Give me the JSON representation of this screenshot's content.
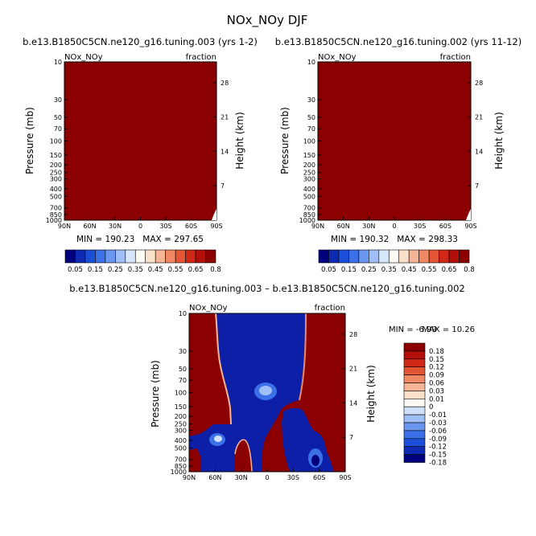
{
  "figure_title": "NOx_NOy DJF",
  "colors": {
    "abs_palette": [
      "#00007f",
      "#0d2bb2",
      "#1c4fd9",
      "#3b70e6",
      "#6a96f0",
      "#a0bff6",
      "#d6e6fb",
      "#fdfbf4",
      "#fbe0c9",
      "#f6b596",
      "#f08863",
      "#e35535",
      "#cf2816",
      "#b20f0a",
      "#8b0000"
    ],
    "diff_palette": [
      "#00007f",
      "#0d2bb2",
      "#1c4fd9",
      "#3b70e6",
      "#6a96f0",
      "#a0bff6",
      "#cfe0fa",
      "#fdfbf4",
      "#fbe0c9",
      "#f6b596",
      "#f08863",
      "#e35535",
      "#cf2816",
      "#b20f0a",
      "#8b0000"
    ]
  },
  "chart_data": [
    {
      "type": "heatmap",
      "title": "b.e13.B1850C5CN.ne120_g16.tuning.003 (yrs 1-2)",
      "left_label": "NOx_NOy",
      "right_label": "fraction",
      "xlabel": "",
      "ylabel": "Pressure (mb)",
      "ylabel_right": "Height (km)",
      "x_ticks": [
        "90N",
        "60N",
        "30N",
        "0",
        "30S",
        "60S",
        "90S"
      ],
      "y_ticks": [
        "10",
        "30",
        "50",
        "70",
        "100",
        "150",
        "200",
        "250",
        "300",
        "400",
        "500",
        "700",
        "850",
        "1000"
      ],
      "right_ticks": [
        "28",
        "21",
        "14",
        "7"
      ],
      "stats": "MIN = 190.23   MAX = 297.65",
      "colorbar_labels": [
        "0.05",
        "0.15",
        "0.25",
        "0.35",
        "0.45",
        "0.55",
        "0.65",
        "0.8"
      ],
      "field": "uniform top value (all > 0.8)"
    },
    {
      "type": "heatmap",
      "title": "b.e13.B1850C5CN.ne120_g16.tuning.002 (yrs 11-12)",
      "left_label": "NOx_NOy",
      "right_label": "fraction",
      "xlabel": "",
      "ylabel": "Pressure (mb)",
      "ylabel_right": "Height (km)",
      "x_ticks": [
        "90N",
        "60N",
        "30N",
        "0",
        "30S",
        "60S",
        "90S"
      ],
      "y_ticks": [
        "10",
        "30",
        "50",
        "70",
        "100",
        "150",
        "200",
        "250",
        "300",
        "400",
        "500",
        "700",
        "850",
        "1000"
      ],
      "right_ticks": [
        "28",
        "21",
        "14",
        "7"
      ],
      "stats": "MIN = 190.32   MAX = 298.33",
      "colorbar_labels": [
        "0.05",
        "0.15",
        "0.25",
        "0.35",
        "0.45",
        "0.55",
        "0.65",
        "0.8"
      ],
      "field": "uniform top value (all > 0.8)"
    },
    {
      "type": "heatmap",
      "title": "b.e13.B1850C5CN.ne120_g16.tuning.003 – b.e13.B1850C5CN.ne120_g16.tuning.002",
      "left_label": "NOx_NOy",
      "right_label": "fraction",
      "xlabel": "",
      "ylabel": "Pressure (mb)",
      "ylabel_right": "Height (km)",
      "x_ticks": [
        "90N",
        "60N",
        "30N",
        "0",
        "30S",
        "60S",
        "90S"
      ],
      "y_ticks": [
        "10",
        "30",
        "50",
        "70",
        "100",
        "150",
        "200",
        "250",
        "300",
        "400",
        "500",
        "700",
        "850",
        "1000"
      ],
      "right_ticks": [
        "28",
        "21",
        "14",
        "7"
      ],
      "stats_min": "MIN = -6.99",
      "stats_max": "MAX = 10.26",
      "colorbar_labels": [
        "0.18",
        "0.15",
        "0.12",
        "0.09",
        "0.06",
        "0.03",
        "0.01",
        "0",
        "-0.01",
        "-0.03",
        "-0.06",
        "-0.09",
        "-0.12",
        "-0.15",
        "-0.18"
      ],
      "field": "positive (>0.18) poleward of ~65N and ~45S-75S columns; negative (<-0.18) in tropics, with blue blobs near surface and at ~100 mb over equator"
    }
  ]
}
